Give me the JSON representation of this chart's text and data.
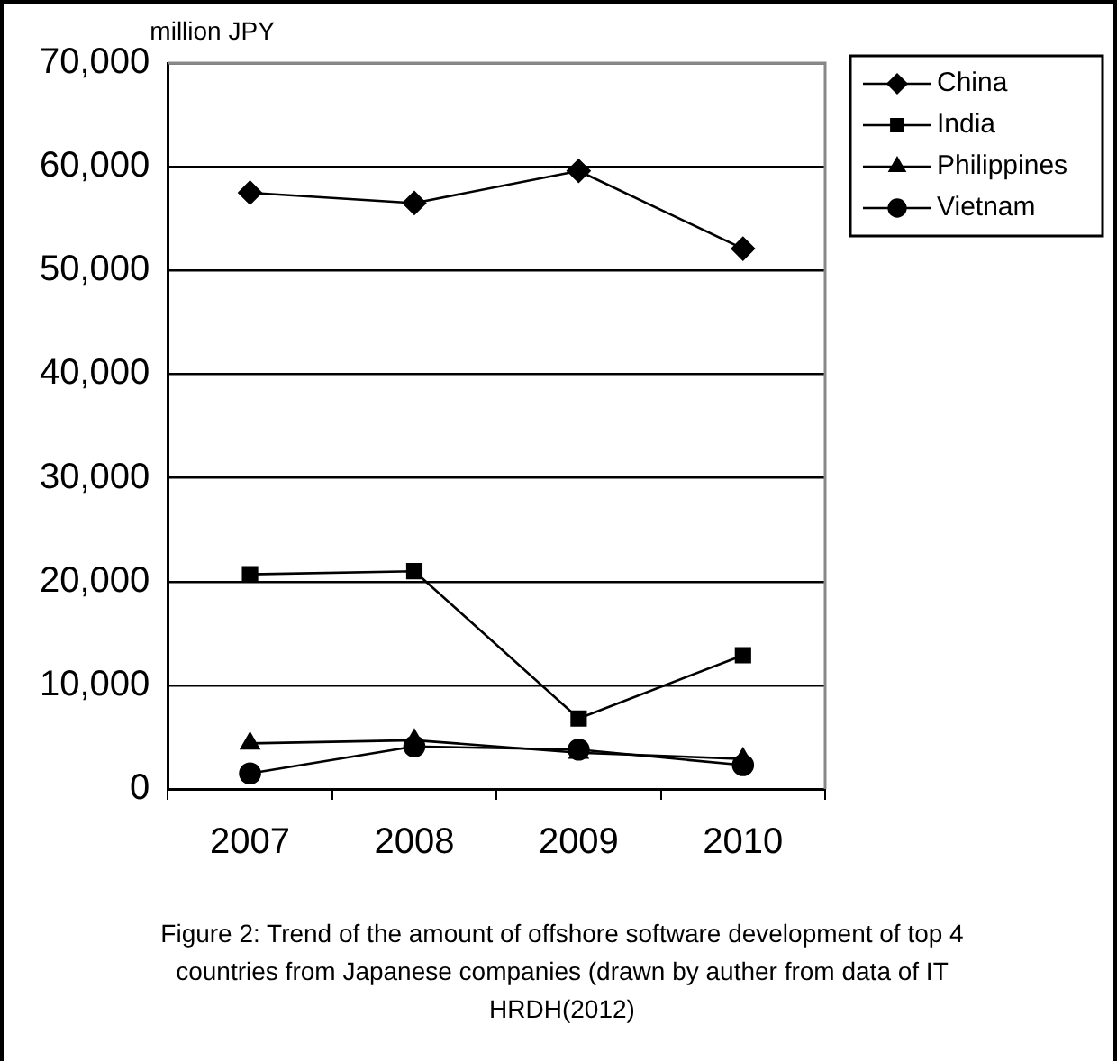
{
  "chart_data": {
    "type": "line",
    "ylabel": "million JPY",
    "categories": [
      "2007",
      "2008",
      "2009",
      "2010"
    ],
    "series": [
      {
        "name": "China",
        "color": "#000000",
        "marker": "diamond",
        "values": [
          57500,
          56500,
          59600,
          52100
        ]
      },
      {
        "name": "India",
        "color": "#000000",
        "marker": "square",
        "values": [
          20700,
          21000,
          6800,
          12900
        ]
      },
      {
        "name": "Philippines",
        "color": "#000000",
        "marker": "triangle",
        "values": [
          4400,
          4700,
          3500,
          2900
        ]
      },
      {
        "name": "Vietnam",
        "color": "#000000",
        "marker": "circle",
        "values": [
          1500,
          4100,
          3800,
          2300
        ]
      }
    ],
    "ylim": [
      0,
      70000
    ],
    "yticks": [
      0,
      {
        "value": 10000,
        "label": "10,000"
      },
      {
        "value": 20000,
        "label": "20,000"
      },
      {
        "value": 30000,
        "label": "30,000"
      },
      {
        "value": 40000,
        "label": "40,000"
      },
      {
        "value": 50000,
        "label": "50,000"
      },
      {
        "value": 60000,
        "label": "60,000"
      },
      {
        "value": 70000,
        "label": "70,000"
      }
    ],
    "grid": "y",
    "legend": "top right",
    "line_style": "solid",
    "annotations": [
      "Figure 2: Trend of the amount of offshore software development of top 4 countries from Japanese companies (drawn by auther from data of IT HRDH(2012)"
    ]
  }
}
